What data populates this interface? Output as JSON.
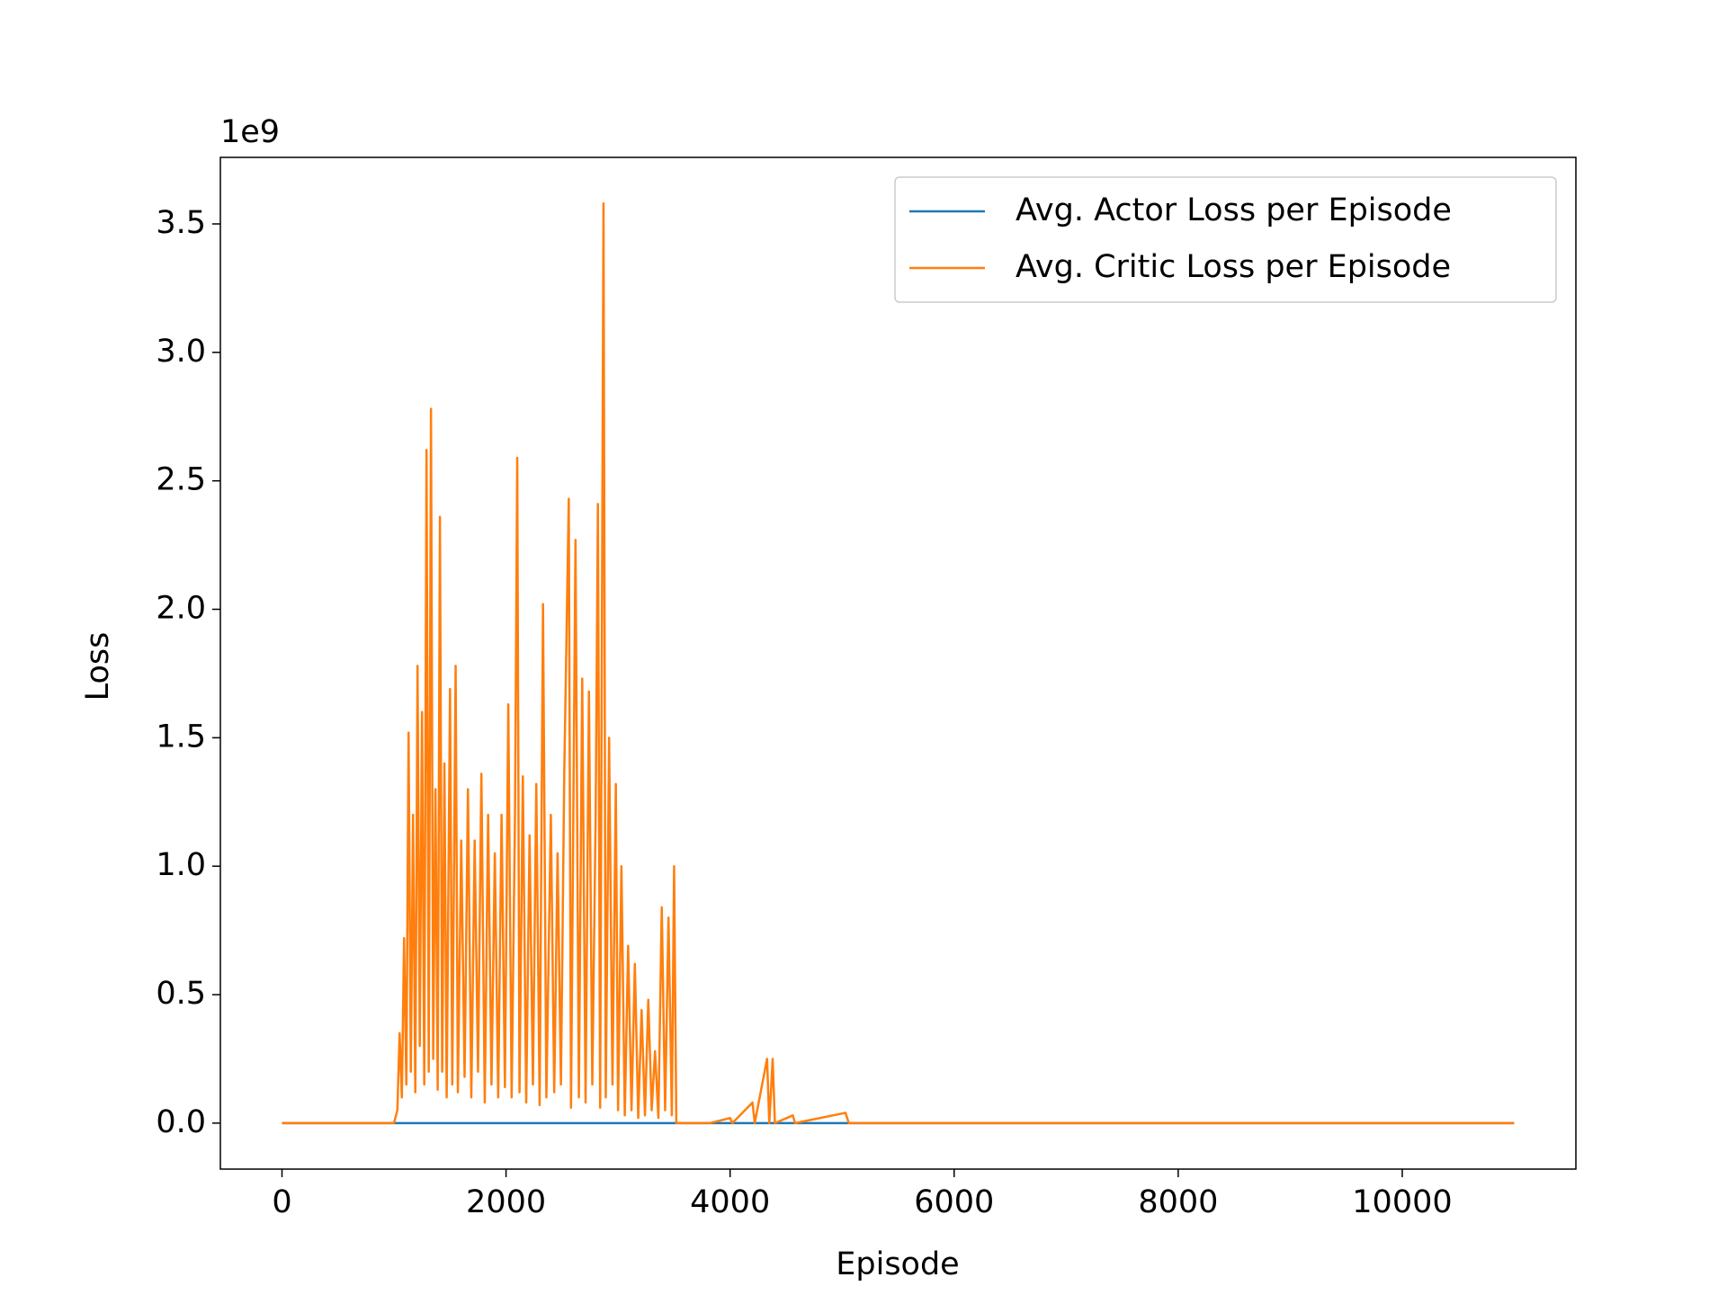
{
  "chart_data": {
    "type": "line",
    "x_label": "Episode",
    "y_label": "Loss",
    "y_offset_label": "1e9",
    "xlim": [
      -550,
      11550
    ],
    "xticks": [
      0,
      2000,
      4000,
      6000,
      8000,
      10000
    ],
    "ylim": [
      -0.179,
      3.759
    ],
    "yticks": [
      {
        "value": 0,
        "label": "0.0"
      },
      0.5,
      {
        "value": 1,
        "label": "1.0"
      },
      1.5,
      {
        "value": 2,
        "label": "2.0"
      },
      2.5,
      {
        "value": 3,
        "label": "3.0"
      },
      3.5
    ],
    "legend": "upper right",
    "grid": false,
    "series": [
      {
        "name": "Avg. Actor Loss per Episode",
        "color": "#1f77b4",
        "x": [
          0,
          11000
        ],
        "values": [
          0,
          0
        ]
      },
      {
        "name": "Avg. Critic Loss per Episode",
        "color": "#ff7f0e",
        "x": [
          0,
          1000,
          1030,
          1050,
          1070,
          1090,
          1110,
          1130,
          1150,
          1170,
          1190,
          1210,
          1230,
          1250,
          1270,
          1290,
          1310,
          1330,
          1350,
          1370,
          1390,
          1410,
          1430,
          1450,
          1470,
          1500,
          1520,
          1550,
          1570,
          1600,
          1630,
          1660,
          1690,
          1720,
          1750,
          1780,
          1810,
          1840,
          1870,
          1900,
          1930,
          1960,
          1990,
          2020,
          2050,
          2080,
          2100,
          2120,
          2150,
          2180,
          2210,
          2240,
          2270,
          2300,
          2330,
          2360,
          2400,
          2430,
          2460,
          2490,
          2520,
          2560,
          2580,
          2620,
          2650,
          2680,
          2710,
          2740,
          2770,
          2800,
          2820,
          2840,
          2870,
          2890,
          2920,
          2950,
          2980,
          3000,
          3030,
          3060,
          3090,
          3120,
          3150,
          3180,
          3210,
          3240,
          3270,
          3300,
          3330,
          3360,
          3390,
          3420,
          3450,
          3480,
          3500,
          3520,
          3820,
          4000,
          4020,
          4200,
          4220,
          4330,
          4350,
          4380,
          4400,
          4560,
          4580,
          5030,
          5060,
          11000
        ],
        "values": [
          0,
          0,
          0.05,
          0.35,
          0.1,
          0.72,
          0.15,
          1.52,
          0.2,
          1.2,
          0.12,
          1.78,
          0.3,
          1.6,
          0.15,
          2.62,
          0.2,
          2.78,
          0.25,
          1.3,
          0.13,
          2.36,
          0.2,
          1.4,
          0.1,
          1.69,
          0.15,
          1.78,
          0.12,
          1.1,
          0.18,
          1.3,
          0.1,
          1.1,
          0.2,
          1.36,
          0.08,
          1.2,
          0.15,
          1.05,
          0.1,
          1.2,
          0.14,
          1.63,
          0.1,
          1.2,
          2.59,
          0.12,
          1.35,
          0.08,
          1.12,
          0.15,
          1.32,
          0.07,
          2.02,
          0.1,
          1.2,
          0.12,
          1.05,
          0.15,
          1.37,
          2.43,
          0.06,
          2.27,
          0.1,
          1.73,
          0.08,
          1.68,
          0.15,
          1.2,
          2.41,
          0.06,
          3.58,
          0.1,
          1.5,
          0.15,
          1.32,
          0.05,
          1.0,
          0.03,
          0.69,
          0.05,
          0.62,
          0.02,
          0.44,
          0.03,
          0.48,
          0.05,
          0.28,
          0.02,
          0.84,
          0.05,
          0.8,
          0.03,
          1.0,
          0,
          0,
          0.02,
          0,
          0.08,
          0,
          0.25,
          0,
          0.25,
          0,
          0.03,
          0,
          0.04,
          0,
          0
        ]
      }
    ]
  }
}
